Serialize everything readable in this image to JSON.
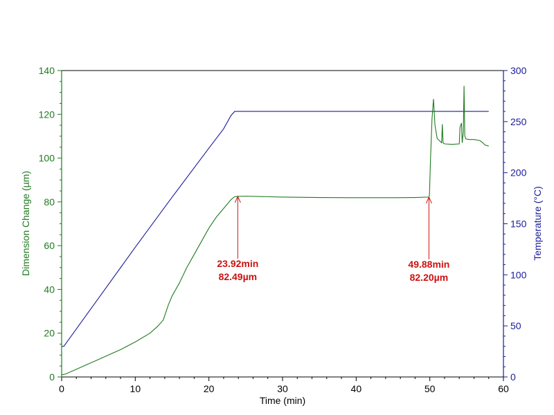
{
  "chart_data": {
    "type": "line",
    "title": "",
    "xlabel": "Time (min)",
    "ylabel": "Dimension Change (µm)",
    "y2label": "Temperature (°C)",
    "xlim": [
      0,
      60
    ],
    "ylim": [
      0,
      140
    ],
    "y2lim": [
      0,
      300
    ],
    "x_ticks": [
      "0",
      "10",
      "20",
      "30",
      "40",
      "50",
      "60"
    ],
    "y_ticks": [
      "0",
      "20",
      "40",
      "60",
      "80",
      "100",
      "120",
      "140"
    ],
    "y2_ticks": [
      "0",
      "50",
      "100",
      "150",
      "200",
      "250",
      "300"
    ],
    "colors": {
      "dimension": "#1f7a1f",
      "temperature": "#1a1a9a",
      "annotation": "#cc1111",
      "axis": "#000000"
    },
    "series": [
      {
        "name": "Dimension Change",
        "axis": "left",
        "x": [
          0,
          0.5,
          2,
          5,
          8,
          10,
          12,
          13,
          13.8,
          14.5,
          15,
          16,
          17,
          18,
          19,
          20,
          21,
          22,
          23,
          23.5,
          23.92,
          25,
          30,
          35,
          40,
          45,
          48,
          49.88,
          49.95,
          50.1,
          50.3,
          50.5,
          50.7,
          51,
          51.3,
          51.6,
          51.7,
          51.8,
          52,
          53,
          54,
          54.1,
          54.3,
          54.4,
          54.55,
          54.65,
          54.75,
          54.9,
          55.3,
          56,
          56.8,
          57.2,
          57.5,
          58
        ],
        "values": [
          1,
          1.3,
          3.5,
          8,
          12.5,
          16,
          20,
          23,
          26,
          33,
          37,
          43,
          50,
          56,
          62,
          68,
          73,
          77,
          81,
          82.4,
          82.49,
          82.6,
          82.2,
          82,
          81.9,
          81.9,
          82,
          82.2,
          83,
          100,
          118,
          127,
          115,
          109,
          108,
          107,
          115.5,
          107,
          106.5,
          106.3,
          106.5,
          114,
          116,
          107,
          112,
          133,
          110,
          108.8,
          108.5,
          108.5,
          108,
          107,
          106,
          105.5
        ]
      },
      {
        "name": "Temperature",
        "axis": "right",
        "x": [
          0,
          0.3,
          2,
          5,
          8,
          10,
          15,
          20,
          22,
          23,
          23.5,
          24,
          25,
          30,
          40,
          50,
          55,
          58
        ],
        "values": [
          30,
          30,
          47,
          77,
          107,
          127,
          176,
          224,
          243,
          256,
          260,
          260,
          260,
          260,
          260,
          260,
          260,
          260
        ]
      }
    ],
    "annotations": [
      {
        "x": 23.92,
        "y": 82.49,
        "label_time": "23.92min",
        "label_value": "82.49µm"
      },
      {
        "x": 49.88,
        "y": 82.2,
        "label_time": "49.88min",
        "label_value": "82.20µm"
      }
    ]
  }
}
